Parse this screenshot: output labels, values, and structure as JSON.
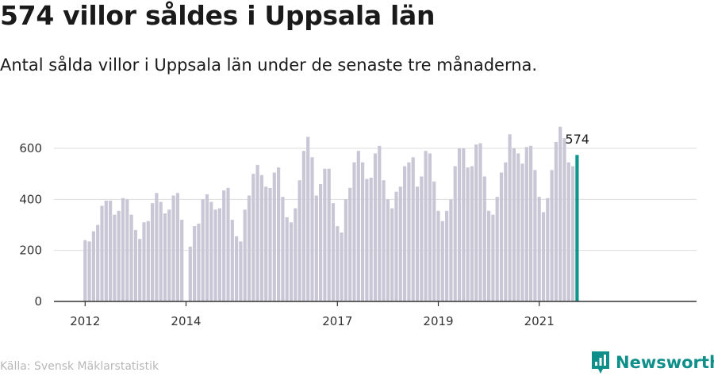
{
  "header": {
    "title": "574 villor såldes i Uppsala län",
    "subtitle": "Antal sålda villor i Uppsala län under de senaste tre månaderna."
  },
  "footer": {
    "source": "Källa: Svensk Mäklarstatistik",
    "brand": "Newsworthy",
    "brand_icon": "newsworthy-logo-icon"
  },
  "colors": {
    "bar": "#c9c7d6",
    "highlight": "#0e968e",
    "grid": "#dddddd",
    "axis": "#333333",
    "brand": "#0e8f89"
  },
  "chart_data": {
    "type": "bar",
    "x_unit": "month",
    "x_start": "2012-01",
    "x_end": "2021-10",
    "x_ticks": [
      "2012",
      "2014",
      "2017",
      "2019",
      "2021"
    ],
    "ylim": [
      0,
      700
    ],
    "y_ticks": [
      0,
      200,
      400,
      600
    ],
    "grid": true,
    "highlight_label": "574",
    "series": [
      {
        "values": [
          240,
          235,
          275,
          300,
          375,
          395,
          395,
          340,
          355,
          405,
          400,
          340,
          280,
          245,
          310,
          315,
          385,
          425,
          390,
          345,
          360,
          415,
          425,
          320,
          0,
          215,
          295,
          305,
          400,
          420,
          390,
          360,
          365,
          435,
          445,
          320,
          255,
          235,
          360,
          415,
          500,
          535,
          495,
          450,
          445,
          505,
          525,
          410,
          330,
          310,
          365,
          475,
          590,
          645,
          565,
          415,
          460,
          520,
          520,
          385,
          295,
          270,
          400,
          445,
          545,
          590,
          545,
          480,
          485,
          580,
          610,
          475,
          400,
          365,
          430,
          450,
          530,
          545,
          565,
          450,
          490,
          590,
          580,
          470,
          355,
          315,
          355,
          400,
          530,
          600,
          600,
          525,
          530,
          615,
          620,
          490,
          355,
          340,
          410,
          505,
          545,
          655,
          600,
          580,
          540,
          605,
          610,
          515,
          410,
          350,
          405,
          515,
          625,
          685,
          640,
          545,
          530,
          574
        ]
      }
    ]
  }
}
